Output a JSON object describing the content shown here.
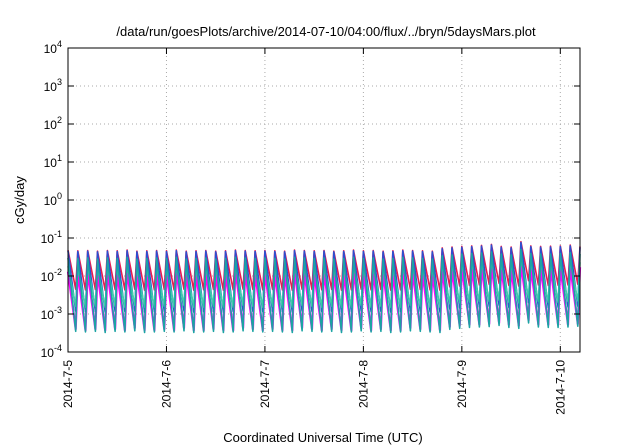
{
  "chart_data": {
    "type": "line",
    "title": "/data/run/goesPlots/archive/2014-07-10/04:00/flux/../bryn/5daysMars.plot",
    "xlabel": "Coordinated Universal Time (UTC)",
    "ylabel": "cGy/day",
    "yscale": "log",
    "ylim": [
      0.0001,
      10000
    ],
    "xlim": [
      0,
      5.2
    ],
    "grid": true,
    "yticks": [
      {
        "base": "10",
        "exp": "-4",
        "value": 0.0001
      },
      {
        "base": "10",
        "exp": "-3",
        "value": 0.001
      },
      {
        "base": "10",
        "exp": "-2",
        "value": 0.01
      },
      {
        "base": "10",
        "exp": "-1",
        "value": 0.1
      },
      {
        "base": "10",
        "exp": "0",
        "value": 1
      },
      {
        "base": "10",
        "exp": "1",
        "value": 10
      },
      {
        "base": "10",
        "exp": "2",
        "value": 100
      },
      {
        "base": "10",
        "exp": "3",
        "value": 1000
      },
      {
        "base": "10",
        "exp": "4",
        "value": 10000
      }
    ],
    "xticks": [
      {
        "label": "2014-7-5",
        "value": 0
      },
      {
        "label": "2014-7-6",
        "value": 1
      },
      {
        "label": "2014-7-7",
        "value": 2
      },
      {
        "label": "2014-7-8",
        "value": 3
      },
      {
        "label": "2014-7-9",
        "value": 4
      },
      {
        "label": "2014-7-10",
        "value": 5
      }
    ],
    "x": [
      0.0,
      0.1,
      0.2,
      0.3,
      0.4,
      0.5,
      0.6,
      0.7,
      0.8,
      0.9,
      1.0,
      1.1,
      1.2,
      1.3,
      1.4,
      1.5,
      1.6,
      1.7,
      1.8,
      1.9,
      2.0,
      2.1,
      2.2,
      2.3,
      2.4,
      2.5,
      2.6,
      2.7,
      2.8,
      2.9,
      3.0,
      3.1,
      3.2,
      3.3,
      3.4,
      3.5,
      3.6,
      3.7,
      3.8,
      3.9,
      4.0,
      4.1,
      4.2,
      4.3,
      4.4,
      4.5,
      4.6,
      4.7,
      4.8,
      4.9,
      5.0,
      5.1,
      5.2
    ],
    "series": [
      {
        "color": "#e81c4f",
        "values": [
          0.048,
          0.046,
          0.047,
          0.045,
          0.047,
          0.046,
          0.048,
          0.045,
          0.046,
          0.047,
          0.046,
          0.048,
          0.045,
          0.046,
          0.047,
          0.045,
          0.046,
          0.048,
          0.047,
          0.046,
          0.047,
          0.046,
          0.045,
          0.048,
          0.047,
          0.046,
          0.047,
          0.045,
          0.046,
          0.048,
          0.046,
          0.047,
          0.045,
          0.046,
          0.048,
          0.047,
          0.046,
          0.045,
          0.055,
          0.058,
          0.06,
          0.062,
          0.064,
          0.068,
          0.06,
          0.058,
          0.08,
          0.062,
          0.06,
          0.061,
          0.062,
          0.065,
          0.06
        ]
      },
      {
        "color": "#2b4fd1",
        "values": [
          0.046,
          0.044,
          0.045,
          0.043,
          0.045,
          0.044,
          0.046,
          0.043,
          0.044,
          0.045,
          0.044,
          0.046,
          0.043,
          0.044,
          0.045,
          0.043,
          0.044,
          0.046,
          0.045,
          0.044,
          0.045,
          0.044,
          0.043,
          0.046,
          0.045,
          0.044,
          0.045,
          0.043,
          0.044,
          0.046,
          0.044,
          0.045,
          0.043,
          0.044,
          0.046,
          0.045,
          0.044,
          0.043,
          0.052,
          0.055,
          0.057,
          0.059,
          0.061,
          0.065,
          0.057,
          0.055,
          0.076,
          0.059,
          0.057,
          0.058,
          0.059,
          0.062,
          0.057
        ]
      },
      {
        "color": "#1ca3a3",
        "values": [
          0.03,
          0.029,
          0.03,
          0.028,
          0.03,
          0.029,
          0.031,
          0.028,
          0.029,
          0.03,
          0.029,
          0.031,
          0.028,
          0.029,
          0.03,
          0.028,
          0.029,
          0.031,
          0.03,
          0.029,
          0.03,
          0.029,
          0.028,
          0.031,
          0.03,
          0.029,
          0.03,
          0.028,
          0.029,
          0.031,
          0.029,
          0.03,
          0.028,
          0.029,
          0.031,
          0.03,
          0.029,
          0.028,
          0.034,
          0.036,
          0.038,
          0.039,
          0.04,
          0.043,
          0.038,
          0.036,
          0.05,
          0.039,
          0.038,
          0.038,
          0.039,
          0.041,
          0.038
        ]
      },
      {
        "color": "#3fd1a8",
        "values": [
          0.018,
          0.017,
          0.018,
          0.017,
          0.018,
          0.017,
          0.019,
          0.017,
          0.017,
          0.018,
          0.017,
          0.019,
          0.017,
          0.017,
          0.018,
          0.017,
          0.017,
          0.019,
          0.018,
          0.017,
          0.018,
          0.017,
          0.017,
          0.019,
          0.018,
          0.017,
          0.018,
          0.017,
          0.017,
          0.019,
          0.017,
          0.018,
          0.017,
          0.017,
          0.019,
          0.018,
          0.017,
          0.017,
          0.021,
          0.022,
          0.023,
          0.024,
          0.024,
          0.026,
          0.023,
          0.022,
          0.03,
          0.024,
          0.023,
          0.023,
          0.024,
          0.025,
          0.023
        ]
      },
      {
        "color": "#ff00ff",
        "values": [
          0.013,
          0.012,
          0.013,
          0.012,
          0.013,
          0.012,
          0.014,
          0.012,
          0.012,
          0.013,
          0.012,
          0.014,
          0.012,
          0.012,
          0.013,
          0.012,
          0.012,
          0.014,
          0.013,
          0.012,
          0.013,
          0.012,
          0.012,
          0.014,
          0.013,
          0.012,
          0.013,
          0.012,
          0.012,
          0.014,
          0.012,
          0.013,
          0.012,
          0.012,
          0.014,
          0.013,
          0.012,
          0.012,
          0.015,
          0.016,
          0.017,
          0.017,
          0.018,
          0.019,
          0.017,
          0.016,
          0.022,
          0.017,
          0.017,
          0.017,
          0.017,
          0.018,
          0.017
        ]
      }
    ],
    "lows": [
      0.0045,
      0.0012,
      0.00035,
      0.0016,
      0.0004
    ]
  }
}
